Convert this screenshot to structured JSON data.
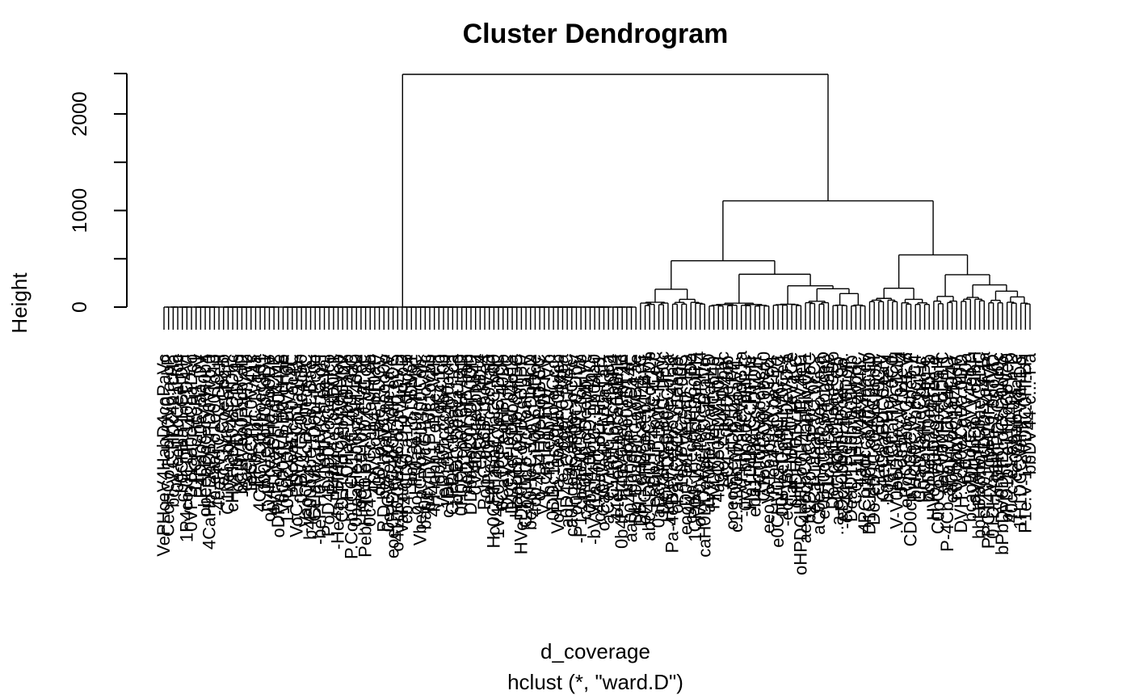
{
  "chart_data": {
    "type": "dendrogram",
    "title": "Cluster Dendrogram",
    "xlabel": "d_coverage",
    "sub": "hclust (*, \"ward.D\")",
    "ylabel": "Height",
    "yticks": [
      "0",
      "1000",
      "2000"
    ],
    "ytick_values": [
      0,
      1000,
      2000
    ],
    "ylim": [
      0,
      2400
    ],
    "leaf_count": 190,
    "merges": [
      {
        "name": "root",
        "height": 2410,
        "children": [
          "flat-cluster",
          "right-cluster"
        ]
      },
      {
        "name": "right-cluster",
        "height": 1100,
        "children": [
          "mid-group",
          "far-group"
        ]
      },
      {
        "name": "mid-group",
        "height": 480,
        "children": [
          "mid-left",
          "mid-right"
        ]
      },
      {
        "name": "mid-right",
        "height": 340,
        "children": [
          "mid-right-a",
          "mid-right-b"
        ]
      },
      {
        "name": "mid-right-b",
        "height": 220,
        "children": [
          "mr-b1",
          "mr-b2"
        ]
      },
      {
        "name": "mr-b2",
        "height": 190,
        "children": [
          "mr-b2a",
          "mr-b2b"
        ]
      },
      {
        "name": "mr-b2b",
        "height": 140,
        "children": [
          "mr-b2b1",
          "mr-b2b2"
        ]
      },
      {
        "name": "mid-left",
        "height": 185,
        "children": [
          "ml-a",
          "ml-b"
        ]
      },
      {
        "name": "far-group",
        "height": 540,
        "children": [
          "far-left",
          "far-right"
        ]
      },
      {
        "name": "far-left",
        "height": 195,
        "children": [
          "fl-a",
          "fl-b"
        ]
      },
      {
        "name": "far-right",
        "height": 335,
        "children": [
          "fr-a",
          "fr-b"
        ]
      },
      {
        "name": "fr-b",
        "height": 230,
        "children": [
          "fr-b1",
          "fr-b2"
        ]
      },
      {
        "name": "fr-b2",
        "height": 165,
        "children": [
          "fr-b2a",
          "fr-b2b"
        ]
      },
      {
        "name": "fr-b2b",
        "height": 105,
        "children": [
          "fr-b2b1",
          "fr-b2b2"
        ]
      }
    ]
  }
}
